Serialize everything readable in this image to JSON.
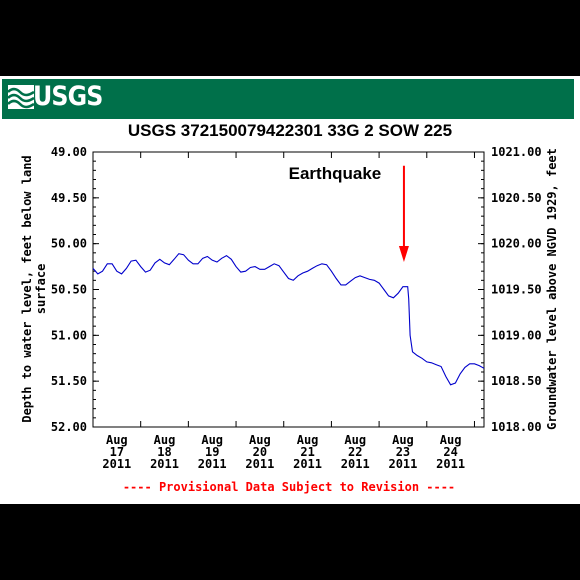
{
  "logo": {
    "text": "USGS"
  },
  "colors": {
    "banner": "#00704a",
    "line": "#0000cc",
    "arrow": "#ff0000",
    "footnote": "#ff0000"
  },
  "chart_data": {
    "type": "line",
    "title": "USGS 372150079422301 33G  2 SOW 225",
    "ylabel_left": [
      "Depth to water level, feet below land",
      "surface"
    ],
    "ylabel_right": "Groundwater level above NGVD 1929, feet",
    "ylim_left": [
      49.0,
      52.0
    ],
    "ylim_right": [
      1018.0,
      1021.0
    ],
    "y_inverted": true,
    "yticks_left": [
      "49.00",
      "49.50",
      "50.00",
      "50.50",
      "51.00",
      "51.50",
      "52.00"
    ],
    "yticks_right": [
      "1021.00",
      "1020.50",
      "1020.00",
      "1019.50",
      "1019.00",
      "1018.50",
      "1018.00"
    ],
    "xlim": [
      0,
      8.2
    ],
    "xticks": [
      {
        "month": "Aug",
        "day": "17",
        "year": "2011",
        "x": 0.5
      },
      {
        "month": "Aug",
        "day": "18",
        "year": "2011",
        "x": 1.5
      },
      {
        "month": "Aug",
        "day": "19",
        "year": "2011",
        "x": 2.5
      },
      {
        "month": "Aug",
        "day": "20",
        "year": "2011",
        "x": 3.5
      },
      {
        "month": "Aug",
        "day": "21",
        "year": "2011",
        "x": 4.5
      },
      {
        "month": "Aug",
        "day": "22",
        "year": "2011",
        "x": 5.5
      },
      {
        "month": "Aug",
        "day": "23",
        "year": "2011",
        "x": 6.5
      },
      {
        "month": "Aug",
        "day": "24",
        "year": "2011",
        "x": 7.5
      }
    ],
    "grid": false,
    "series": [
      {
        "x": [
          0.0,
          0.1,
          0.2,
          0.3,
          0.4,
          0.5,
          0.6,
          0.7,
          0.8,
          0.9,
          1.0,
          1.1,
          1.2,
          1.3,
          1.4,
          1.5,
          1.6,
          1.7,
          1.8,
          1.9,
          2.0,
          2.1,
          2.2,
          2.3,
          2.4,
          2.5,
          2.6,
          2.7,
          2.8,
          2.9,
          3.0,
          3.1,
          3.2,
          3.3,
          3.4,
          3.5,
          3.6,
          3.7,
          3.8,
          3.9,
          4.0,
          4.1,
          4.2,
          4.3,
          4.4,
          4.5,
          4.6,
          4.7,
          4.8,
          4.9,
          5.0,
          5.1,
          5.2,
          5.3,
          5.4,
          5.5,
          5.6,
          5.7,
          5.8,
          5.9,
          6.0,
          6.1,
          6.2,
          6.3,
          6.4,
          6.5,
          6.6,
          6.62,
          6.65,
          6.7,
          6.8,
          6.9,
          7.0,
          7.1,
          7.2,
          7.3,
          7.4,
          7.5,
          7.6,
          7.7,
          7.8,
          7.9,
          8.0,
          8.1,
          8.2
        ],
        "y": [
          50.27,
          50.33,
          50.3,
          50.22,
          50.22,
          50.3,
          50.33,
          50.27,
          50.19,
          50.18,
          50.25,
          50.31,
          50.29,
          50.21,
          50.17,
          50.21,
          50.23,
          50.17,
          50.11,
          50.12,
          50.18,
          50.22,
          50.22,
          50.16,
          50.14,
          50.18,
          50.2,
          50.16,
          50.13,
          50.17,
          50.25,
          50.31,
          50.3,
          50.26,
          50.25,
          50.28,
          50.28,
          50.25,
          50.22,
          50.24,
          50.31,
          50.38,
          50.4,
          50.35,
          50.32,
          50.3,
          50.27,
          50.24,
          50.22,
          50.23,
          50.3,
          50.38,
          50.45,
          50.45,
          50.41,
          50.37,
          50.35,
          50.37,
          50.39,
          50.4,
          50.43,
          50.5,
          50.57,
          50.59,
          50.54,
          50.47,
          50.47,
          50.6,
          51.0,
          51.18,
          51.22,
          51.25,
          51.29,
          51.3,
          51.32,
          51.34,
          51.45,
          51.54,
          51.52,
          51.42,
          51.35,
          51.31,
          51.31,
          51.33,
          51.36
        ]
      }
    ],
    "annotations": [
      {
        "text": "Earthquake",
        "x": 6.5,
        "y": 49.25
      }
    ],
    "arrow": {
      "x": 6.5,
      "y_from": 49.15,
      "y_to": 50.2
    },
    "footnote": "---- Provisional Data Subject to Revision ----"
  }
}
